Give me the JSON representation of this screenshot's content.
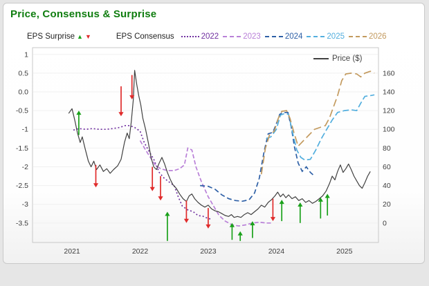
{
  "title": "Price, Consensus & Surprise",
  "colors": {
    "title_green": "#0f7d0f",
    "surprise_up": "#1aa11a",
    "surprise_down": "#e02b2b",
    "price_line": "#404040",
    "axis_text": "#3c3c3c",
    "plot_border": "#c8c8c8",
    "grid": "#f0f0f0"
  },
  "legend": {
    "eps_surprise_label": "EPS Surprise",
    "eps_consensus_label": "EPS Consensus",
    "price_label": "Price ($)",
    "up_glyph": "▲",
    "down_glyph": "▼"
  },
  "chart_data": {
    "type": "line",
    "title": "Price, Consensus & Surprise",
    "x_axis": {
      "tick_labels": [
        "2021",
        "2022",
        "2023",
        "2024",
        "2025"
      ],
      "tick_values": [
        2021,
        2022,
        2023,
        2024,
        2025
      ],
      "range": [
        2020.42,
        2025.5
      ]
    },
    "y_left": {
      "name": "EPS Consensus",
      "tick_labels": [
        "1",
        "0.5",
        "0.0",
        "-0.5",
        "-1",
        "-1.5",
        "-2",
        "-2.5",
        "-3",
        "-3.5"
      ],
      "tick_values": [
        1,
        0.5,
        0,
        -0.5,
        -1,
        -1.5,
        -2,
        -2.5,
        -3,
        -3.5
      ],
      "range": [
        -4.02,
        1.18
      ]
    },
    "y_right": {
      "name": "Price ($)",
      "tick_labels": [
        "160",
        "140",
        "120",
        "100",
        "80",
        "60",
        "40",
        "20",
        "0"
      ],
      "tick_values": [
        160,
        140,
        120,
        100,
        80,
        60,
        40,
        20,
        0
      ],
      "price_per_eps": 40,
      "eps_at_zero_price": -3.5
    },
    "price_series": {
      "name": "Price ($)",
      "color": "#404040",
      "points": [
        [
          2020.95,
          117
        ],
        [
          2021.0,
          122
        ],
        [
          2021.04,
          110
        ],
        [
          2021.08,
          96
        ],
        [
          2021.12,
          86
        ],
        [
          2021.15,
          92
        ],
        [
          2021.19,
          80
        ],
        [
          2021.24,
          66
        ],
        [
          2021.28,
          60
        ],
        [
          2021.32,
          66
        ],
        [
          2021.36,
          57
        ],
        [
          2021.41,
          62
        ],
        [
          2021.46,
          55
        ],
        [
          2021.51,
          58
        ],
        [
          2021.56,
          53
        ],
        [
          2021.61,
          57
        ],
        [
          2021.67,
          61
        ],
        [
          2021.72,
          68
        ],
        [
          2021.77,
          86
        ],
        [
          2021.81,
          96
        ],
        [
          2021.84,
          90
        ],
        [
          2021.87,
          108
        ],
        [
          2021.9,
          132
        ],
        [
          2021.92,
          163
        ],
        [
          2021.95,
          148
        ],
        [
          2021.98,
          136
        ],
        [
          2022.01,
          126
        ],
        [
          2022.04,
          112
        ],
        [
          2022.08,
          100
        ],
        [
          2022.12,
          86
        ],
        [
          2022.16,
          70
        ],
        [
          2022.2,
          60
        ],
        [
          2022.24,
          57
        ],
        [
          2022.28,
          64
        ],
        [
          2022.32,
          70
        ],
        [
          2022.36,
          63
        ],
        [
          2022.4,
          54
        ],
        [
          2022.44,
          47
        ],
        [
          2022.48,
          41
        ],
        [
          2022.53,
          37
        ],
        [
          2022.58,
          31
        ],
        [
          2022.63,
          26
        ],
        [
          2022.68,
          23
        ],
        [
          2022.72,
          29
        ],
        [
          2022.76,
          31
        ],
        [
          2022.8,
          26
        ],
        [
          2022.85,
          22
        ],
        [
          2022.9,
          19
        ],
        [
          2022.95,
          17
        ],
        [
          2023.0,
          19
        ],
        [
          2023.05,
          15
        ],
        [
          2023.1,
          13
        ],
        [
          2023.15,
          12
        ],
        [
          2023.2,
          10
        ],
        [
          2023.25,
          8
        ],
        [
          2023.3,
          7
        ],
        [
          2023.34,
          9
        ],
        [
          2023.38,
          6
        ],
        [
          2023.43,
          7
        ],
        [
          2023.48,
          6
        ],
        [
          2023.53,
          9
        ],
        [
          2023.58,
          11
        ],
        [
          2023.63,
          9
        ],
        [
          2023.68,
          12
        ],
        [
          2023.73,
          15
        ],
        [
          2023.78,
          19
        ],
        [
          2023.83,
          17
        ],
        [
          2023.88,
          22
        ],
        [
          2023.93,
          25
        ],
        [
          2023.98,
          29
        ],
        [
          2024.02,
          33
        ],
        [
          2024.06,
          28
        ],
        [
          2024.1,
          31
        ],
        [
          2024.14,
          27
        ],
        [
          2024.18,
          30
        ],
        [
          2024.23,
          26
        ],
        [
          2024.28,
          28
        ],
        [
          2024.33,
          24
        ],
        [
          2024.38,
          26
        ],
        [
          2024.43,
          22
        ],
        [
          2024.48,
          24
        ],
        [
          2024.53,
          21
        ],
        [
          2024.58,
          23
        ],
        [
          2024.63,
          26
        ],
        [
          2024.68,
          29
        ],
        [
          2024.73,
          34
        ],
        [
          2024.78,
          42
        ],
        [
          2024.82,
          50
        ],
        [
          2024.86,
          46
        ],
        [
          2024.9,
          55
        ],
        [
          2024.94,
          62
        ],
        [
          2024.98,
          54
        ],
        [
          2025.02,
          58
        ],
        [
          2025.06,
          63
        ],
        [
          2025.1,
          57
        ],
        [
          2025.14,
          50
        ],
        [
          2025.18,
          45
        ],
        [
          2025.22,
          40
        ],
        [
          2025.26,
          37
        ],
        [
          2025.3,
          43
        ],
        [
          2025.34,
          50
        ],
        [
          2025.38,
          55
        ]
      ]
    },
    "consensus_series": [
      {
        "name": "2022",
        "color": "#7030a0",
        "dash": "2,3",
        "legend_style": "dotted",
        "points": [
          [
            2021.02,
            -1.02
          ],
          [
            2021.1,
            -0.98
          ],
          [
            2021.2,
            -1.0
          ],
          [
            2021.3,
            -0.98
          ],
          [
            2021.4,
            -1.0
          ],
          [
            2021.5,
            -1.0
          ],
          [
            2021.6,
            -0.98
          ],
          [
            2021.7,
            -0.95
          ],
          [
            2021.78,
            -0.9
          ],
          [
            2021.85,
            -0.9
          ],
          [
            2021.92,
            -0.95
          ],
          [
            2022.0,
            -1.05
          ],
          [
            2022.06,
            -1.35
          ],
          [
            2022.12,
            -1.55
          ],
          [
            2022.2,
            -1.8
          ],
          [
            2022.28,
            -2.15
          ],
          [
            2022.35,
            -2.3
          ],
          [
            2022.42,
            -2.4
          ],
          [
            2022.5,
            -2.5
          ],
          [
            2022.56,
            -2.8
          ],
          [
            2022.62,
            -3.05
          ],
          [
            2022.7,
            -3.15
          ],
          [
            2022.78,
            -3.2
          ],
          [
            2022.85,
            -3.3
          ],
          [
            2022.92,
            -3.32
          ],
          [
            2023.0,
            -3.38
          ],
          [
            2023.06,
            -3.4
          ]
        ]
      },
      {
        "name": "2023",
        "color": "#b980d8",
        "dash": "6,3",
        "legend_style": "dashed",
        "points": [
          [
            2022.0,
            -1.3
          ],
          [
            2022.08,
            -1.55
          ],
          [
            2022.15,
            -1.75
          ],
          [
            2022.22,
            -1.95
          ],
          [
            2022.3,
            -2.05
          ],
          [
            2022.4,
            -2.1
          ],
          [
            2022.5,
            -2.1
          ],
          [
            2022.58,
            -2.05
          ],
          [
            2022.65,
            -1.95
          ],
          [
            2022.7,
            -1.5
          ],
          [
            2022.76,
            -1.55
          ],
          [
            2022.82,
            -2.0
          ],
          [
            2022.9,
            -2.4
          ],
          [
            2023.0,
            -2.8
          ],
          [
            2023.08,
            -3.05
          ],
          [
            2023.16,
            -3.3
          ],
          [
            2023.25,
            -3.45
          ],
          [
            2023.35,
            -3.55
          ],
          [
            2023.45,
            -3.58
          ],
          [
            2023.55,
            -3.55
          ],
          [
            2023.65,
            -3.5
          ],
          [
            2023.75,
            -3.48
          ],
          [
            2023.85,
            -3.5
          ],
          [
            2023.92,
            -3.5
          ]
        ]
      },
      {
        "name": "2024",
        "color": "#2d5fa6",
        "dash": "7,4",
        "legend_style": "dashed",
        "points": [
          [
            2022.88,
            -2.5
          ],
          [
            2023.0,
            -2.52
          ],
          [
            2023.1,
            -2.6
          ],
          [
            2023.2,
            -2.75
          ],
          [
            2023.3,
            -2.85
          ],
          [
            2023.4,
            -2.9
          ],
          [
            2023.5,
            -2.92
          ],
          [
            2023.6,
            -2.88
          ],
          [
            2023.68,
            -2.7
          ],
          [
            2023.75,
            -2.3
          ],
          [
            2023.82,
            -1.6
          ],
          [
            2023.88,
            -1.12
          ],
          [
            2023.95,
            -1.08
          ],
          [
            2024.0,
            -0.85
          ],
          [
            2024.05,
            -0.6
          ],
          [
            2024.1,
            -0.55
          ],
          [
            2024.17,
            -0.55
          ],
          [
            2024.22,
            -0.95
          ],
          [
            2024.27,
            -1.5
          ],
          [
            2024.32,
            -1.9
          ],
          [
            2024.38,
            -2.12
          ],
          [
            2024.44,
            -2.0
          ],
          [
            2024.5,
            -2.15
          ],
          [
            2024.56,
            -2.25
          ]
        ]
      },
      {
        "name": "2025",
        "color": "#52aede",
        "dash": "9,4",
        "legend_style": "dashed",
        "points": [
          [
            2023.85,
            -1.25
          ],
          [
            2023.92,
            -1.2
          ],
          [
            2024.0,
            -1.0
          ],
          [
            2024.06,
            -0.62
          ],
          [
            2024.12,
            -0.58
          ],
          [
            2024.18,
            -0.6
          ],
          [
            2024.24,
            -1.1
          ],
          [
            2024.3,
            -1.55
          ],
          [
            2024.36,
            -1.75
          ],
          [
            2024.42,
            -1.82
          ],
          [
            2024.5,
            -1.8
          ],
          [
            2024.58,
            -1.55
          ],
          [
            2024.66,
            -1.25
          ],
          [
            2024.74,
            -1.0
          ],
          [
            2024.82,
            -0.75
          ],
          [
            2024.9,
            -0.55
          ],
          [
            2025.0,
            -0.5
          ],
          [
            2025.1,
            -0.48
          ],
          [
            2025.18,
            -0.5
          ],
          [
            2025.24,
            -0.3
          ],
          [
            2025.3,
            -0.12
          ],
          [
            2025.38,
            -0.1
          ],
          [
            2025.44,
            -0.08
          ]
        ]
      },
      {
        "name": "2026",
        "color": "#c39a5e",
        "dash": "11,5",
        "legend_style": "dashed",
        "points": [
          [
            2023.78,
            -2.2
          ],
          [
            2023.84,
            -1.5
          ],
          [
            2023.9,
            -1.15
          ],
          [
            2023.97,
            -1.05
          ],
          [
            2024.03,
            -0.7
          ],
          [
            2024.08,
            -0.52
          ],
          [
            2024.15,
            -0.5
          ],
          [
            2024.2,
            -0.7
          ],
          [
            2024.26,
            -1.1
          ],
          [
            2024.32,
            -1.45
          ],
          [
            2024.4,
            -1.3
          ],
          [
            2024.48,
            -1.15
          ],
          [
            2024.56,
            -1.0
          ],
          [
            2024.64,
            -0.95
          ],
          [
            2024.72,
            -0.9
          ],
          [
            2024.78,
            -0.7
          ],
          [
            2024.84,
            -0.4
          ],
          [
            2024.9,
            -0.1
          ],
          [
            2024.96,
            0.3
          ],
          [
            2025.02,
            0.48
          ],
          [
            2025.1,
            0.5
          ],
          [
            2025.18,
            0.48
          ],
          [
            2025.24,
            0.4
          ],
          [
            2025.3,
            0.5
          ],
          [
            2025.38,
            0.55
          ],
          [
            2025.44,
            0.5
          ]
        ]
      }
    ],
    "surprises": [
      {
        "x": 2021.1,
        "dir": "up",
        "tip": -0.5,
        "tail": -1.15
      },
      {
        "x": 2021.35,
        "dir": "down",
        "tip": -2.55,
        "tail": -1.95
      },
      {
        "x": 2021.72,
        "dir": "down",
        "tip": -0.65,
        "tail": 0.15
      },
      {
        "x": 2021.88,
        "dir": "down",
        "tip": -0.2,
        "tail": 0.45
      },
      {
        "x": 2022.18,
        "dir": "down",
        "tip": -2.65,
        "tail": -2.0
      },
      {
        "x": 2022.3,
        "dir": "down",
        "tip": -2.9,
        "tail": -2.25
      },
      {
        "x": 2022.4,
        "dir": "up",
        "tip": -3.2,
        "tail": -3.98
      },
      {
        "x": 2022.68,
        "dir": "down",
        "tip": -3.5,
        "tail": -2.9
      },
      {
        "x": 2023.0,
        "dir": "down",
        "tip": -3.65,
        "tail": -3.1
      },
      {
        "x": 2023.35,
        "dir": "up",
        "tip": -3.5,
        "tail": -3.95
      },
      {
        "x": 2023.47,
        "dir": "up",
        "tip": -3.72,
        "tail": -3.98
      },
      {
        "x": 2023.65,
        "dir": "up",
        "tip": -3.45,
        "tail": -3.9
      },
      {
        "x": 2023.95,
        "dir": "down",
        "tip": -3.45,
        "tail": -2.85
      },
      {
        "x": 2024.08,
        "dir": "up",
        "tip": -2.88,
        "tail": -3.45
      },
      {
        "x": 2024.35,
        "dir": "up",
        "tip": -2.95,
        "tail": -3.5
      },
      {
        "x": 2024.65,
        "dir": "up",
        "tip": -2.82,
        "tail": -3.38
      },
      {
        "x": 2024.75,
        "dir": "up",
        "tip": -2.72,
        "tail": -3.3
      }
    ],
    "legend_position": "top",
    "grid": "horizontal-faint"
  }
}
